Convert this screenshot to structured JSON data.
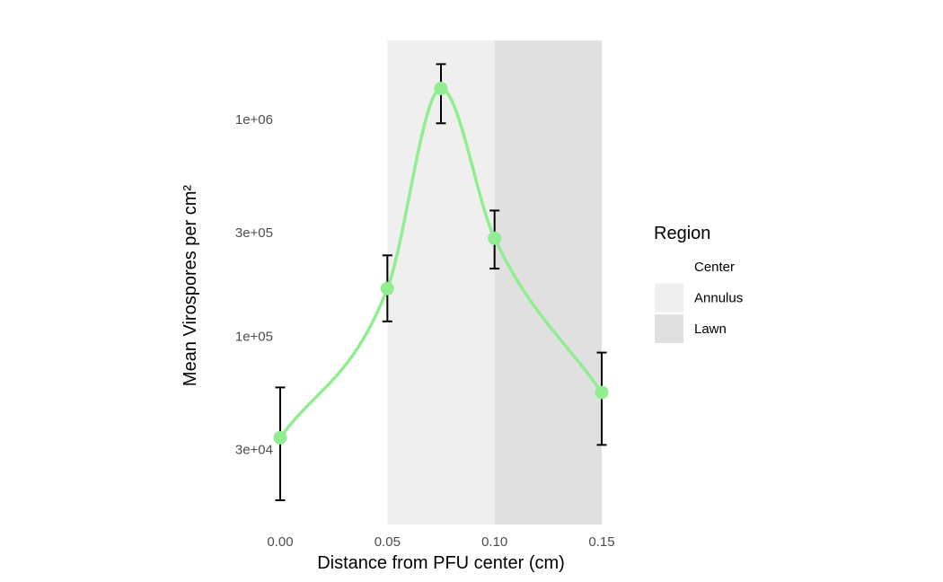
{
  "chart_data": {
    "type": "line",
    "xlabel": "Distance from PFU center (cm)",
    "ylabel": "Mean Virospores per cm²",
    "y_scale": "log",
    "xlim": [
      0.0,
      0.15
    ],
    "ylim": [
      15000,
      2200000
    ],
    "x_ticks": [
      {
        "value": 0.0,
        "label": "0.00"
      },
      {
        "value": 0.05,
        "label": "0.05"
      },
      {
        "value": 0.1,
        "label": "0.10"
      },
      {
        "value": 0.15,
        "label": "0.15"
      }
    ],
    "y_ticks": [
      {
        "value": 30000,
        "label": "3e+04"
      },
      {
        "value": 100000,
        "label": "1e+05"
      },
      {
        "value": 300000,
        "label": "3e+05"
      },
      {
        "value": 1000000,
        "label": "1e+06"
      }
    ],
    "series": [
      {
        "color": "#90EE90",
        "points": [
          {
            "x": 0.0,
            "y": 34000,
            "ymin": 17500,
            "ymax": 58000
          },
          {
            "x": 0.05,
            "y": 166000,
            "ymin": 117000,
            "ymax": 236000
          },
          {
            "x": 0.075,
            "y": 1390000,
            "ymin": 960000,
            "ymax": 1800000
          },
          {
            "x": 0.1,
            "y": 283000,
            "ymin": 205000,
            "ymax": 380000
          },
          {
            "x": 0.15,
            "y": 55000,
            "ymin": 31500,
            "ymax": 84000
          }
        ]
      }
    ],
    "regions": [
      {
        "name": "Center",
        "xmin": 0.0,
        "xmax": 0.05,
        "color": "#FFFFFF"
      },
      {
        "name": "Annulus",
        "xmin": 0.05,
        "xmax": 0.1,
        "color": "#EFEFEF"
      },
      {
        "name": "Lawn",
        "xmin": 0.1,
        "xmax": 0.15,
        "color": "#E0E0E0"
      }
    ],
    "grid": false,
    "legend": {
      "title": "Region",
      "position": "right",
      "entries": [
        {
          "label": "Center",
          "color": "#FFFFFF"
        },
        {
          "label": "Annulus",
          "color": "#EFEFEF"
        },
        {
          "label": "Lawn",
          "color": "#E0E0E0"
        }
      ]
    }
  }
}
